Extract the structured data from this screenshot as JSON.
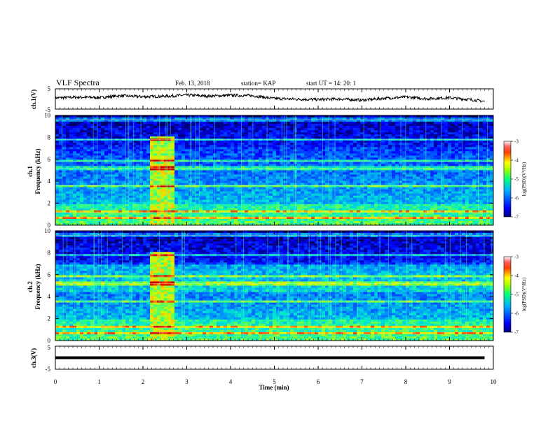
{
  "header": {
    "title": "VLF Spectra",
    "date": "Feb. 13, 2018",
    "station": "station= KAP",
    "start": "start  UT  =   14: 20: 1"
  },
  "chart_data": [
    {
      "type": "line",
      "panel": "ch1",
      "ylabel": "ch.1(V)",
      "ylim": [
        -5,
        5
      ],
      "yticks": [
        "5",
        "-5"
      ],
      "x": [
        0,
        0.5,
        1,
        1.5,
        2,
        2.5,
        3,
        3.5,
        4,
        4.5,
        5,
        5.5,
        6,
        6.5,
        7,
        7.5,
        8,
        8.5,
        9,
        9.5,
        9.8
      ],
      "y": [
        0.5,
        0.9,
        0.7,
        1.6,
        1.1,
        1.3,
        1.9,
        1.4,
        1.8,
        1.6,
        0.2,
        -0.1,
        -0.3,
        0.0,
        -0.6,
        0.3,
        0.9,
        0.1,
        0.6,
        -0.4,
        -1.2
      ]
    },
    {
      "type": "heatmap",
      "panel": "ch1-spectrogram",
      "ylabel_line1": "ch.1",
      "ylabel_line2": "Frequency (kHz)",
      "ylim": [
        0,
        10
      ],
      "yticks": [
        "0",
        "2",
        "4",
        "6",
        "8",
        "10"
      ],
      "colorbar": {
        "label": "log(PSD)(V²/Hz)",
        "range": [
          -7,
          -3
        ],
        "ticks": [
          "-3",
          "-4",
          "-5",
          "-6",
          "-7"
        ]
      }
    },
    {
      "type": "heatmap",
      "panel": "ch2-spectrogram",
      "ylabel_line1": "ch.2",
      "ylabel_line2": "Frequency (kHz)",
      "ylim": [
        0,
        10
      ],
      "yticks": [
        "0",
        "2",
        "4",
        "6",
        "8",
        "10"
      ],
      "colorbar": {
        "label": "log(PSD)(V²/Hz)",
        "range": [
          -7,
          -3
        ],
        "ticks": [
          "-3",
          "-4",
          "-5",
          "-6",
          "-7"
        ]
      }
    },
    {
      "type": "line",
      "panel": "ch3",
      "ylabel": "ch.3(V)",
      "ylim": [
        -5,
        5
      ],
      "yticks": [
        "5",
        "-5"
      ],
      "x": [
        0,
        9.8
      ],
      "y": [
        0,
        0
      ]
    }
  ],
  "xaxis": {
    "label": "Time  (min)",
    "range": [
      0,
      10
    ],
    "ticks": [
      "0",
      "1",
      "2",
      "3",
      "4",
      "5",
      "6",
      "7",
      "8",
      "9",
      "10"
    ]
  }
}
